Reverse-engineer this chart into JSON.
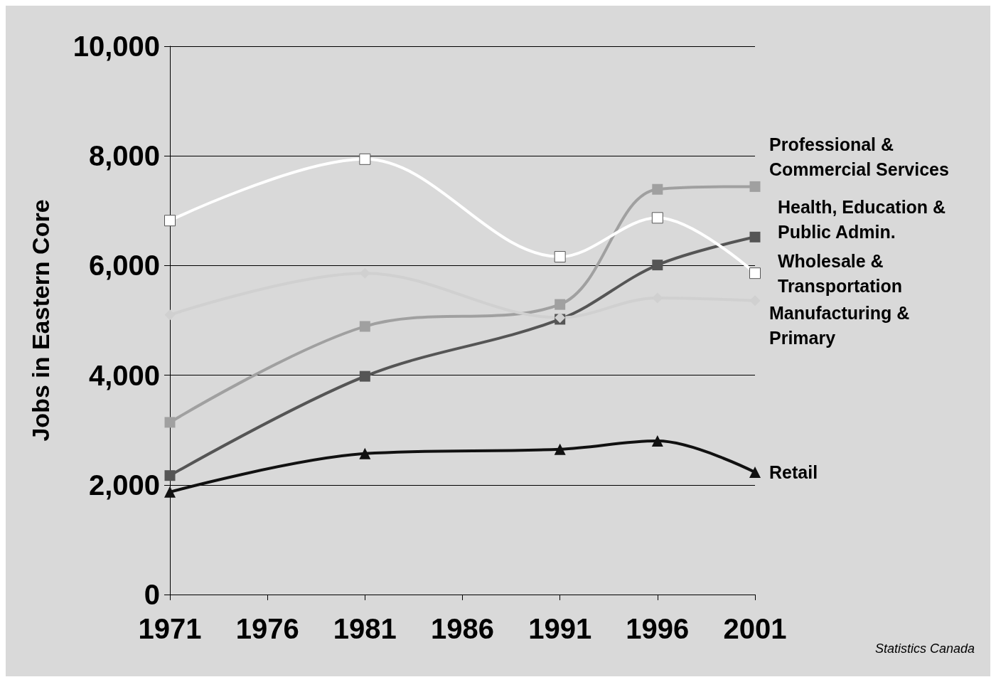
{
  "chart_data": {
    "type": "line",
    "ylabel": "Jobs in Eastern Core",
    "x": [
      1971,
      1981,
      1991,
      1996,
      2001
    ],
    "xlim": [
      1971,
      2001
    ],
    "xticks": [
      1971,
      1976,
      1981,
      1986,
      1991,
      1996,
      2001
    ],
    "ylim": [
      0,
      10000
    ],
    "yticks": [
      {
        "value": 0,
        "label": "0"
      },
      {
        "value": 2000,
        "label": "2,000"
      },
      {
        "value": 4000,
        "label": "4,000"
      },
      {
        "value": 6000,
        "label": "6,000"
      },
      {
        "value": 8000,
        "label": "8,000"
      },
      {
        "value": 10000,
        "label": "10,000"
      }
    ],
    "grid": "y",
    "legend": false,
    "line_style": "solid",
    "series": [
      {
        "name": "Professional & Commercial Services",
        "color": "#a0a0a0",
        "marker": "square",
        "values": [
          3140,
          4890,
          5290,
          7390,
          7440
        ]
      },
      {
        "name": "Health, Education & Public Admin.",
        "color": "#555555",
        "marker": "square",
        "values": [
          2170,
          3980,
          5020,
          6010,
          6520
        ]
      },
      {
        "name": "Wholesale & Transportation",
        "color": "#ffffff",
        "marker": "square",
        "values": [
          6820,
          7940,
          6160,
          6870,
          5860
        ]
      },
      {
        "name": "Manufacturing & Primary",
        "color": "#d0d0d0",
        "marker": "diamond",
        "values": [
          5100,
          5860,
          5050,
          5410,
          5360
        ]
      },
      {
        "name": "Retail",
        "color": "#111111",
        "marker": "triangle",
        "values": [
          1870,
          2570,
          2650,
          2800,
          2230
        ]
      }
    ],
    "annotations": [
      "Statistics Canada"
    ]
  }
}
